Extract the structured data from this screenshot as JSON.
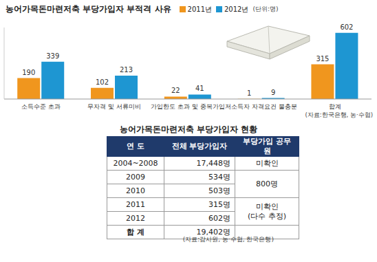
{
  "chart_data": {
    "type": "bar",
    "title": "농어가목돈마련저축 부당가입자 부적격 사유",
    "subtitle": "(단위:명)",
    "annotations": [
      "(자료:한국은행, 농·수협)"
    ],
    "categories": [
      "소득수준 초과",
      "무자격 및 서류미비",
      "가입한도 초과 및 중복가입",
      "저소득자 자격요건 불충분",
      "합계"
    ],
    "series": [
      {
        "name": "2011년",
        "color": "#f0961e",
        "values": [
          190,
          102,
          22,
          1,
          315
        ]
      },
      {
        "name": "2012년",
        "color": "#1e96d2",
        "values": [
          339,
          213,
          41,
          9,
          602
        ]
      }
    ],
    "ylim": [
      0,
      650
    ],
    "tick_labels": "x",
    "data_labels": true,
    "grid": false,
    "legend": "top"
  },
  "table": {
    "title": "농어가목돈마련저축 부당가입자 현황",
    "header": [
      "연 도",
      "전체 부당가입자",
      "부당가입 공무원"
    ],
    "rows": [
      [
        "2004~2008",
        "17,448명",
        "미확인"
      ],
      [
        "2009",
        "534명",
        "800명"
      ],
      [
        "2010",
        "503명",
        null
      ],
      [
        "2011",
        "315명",
        "미확인\n(다수 추정)"
      ],
      [
        "2012",
        "602명",
        null
      ]
    ],
    "total": [
      "합 계",
      "19,402명"
    ],
    "source": "(자료:감사원, 농·수협, 한국은행)"
  }
}
